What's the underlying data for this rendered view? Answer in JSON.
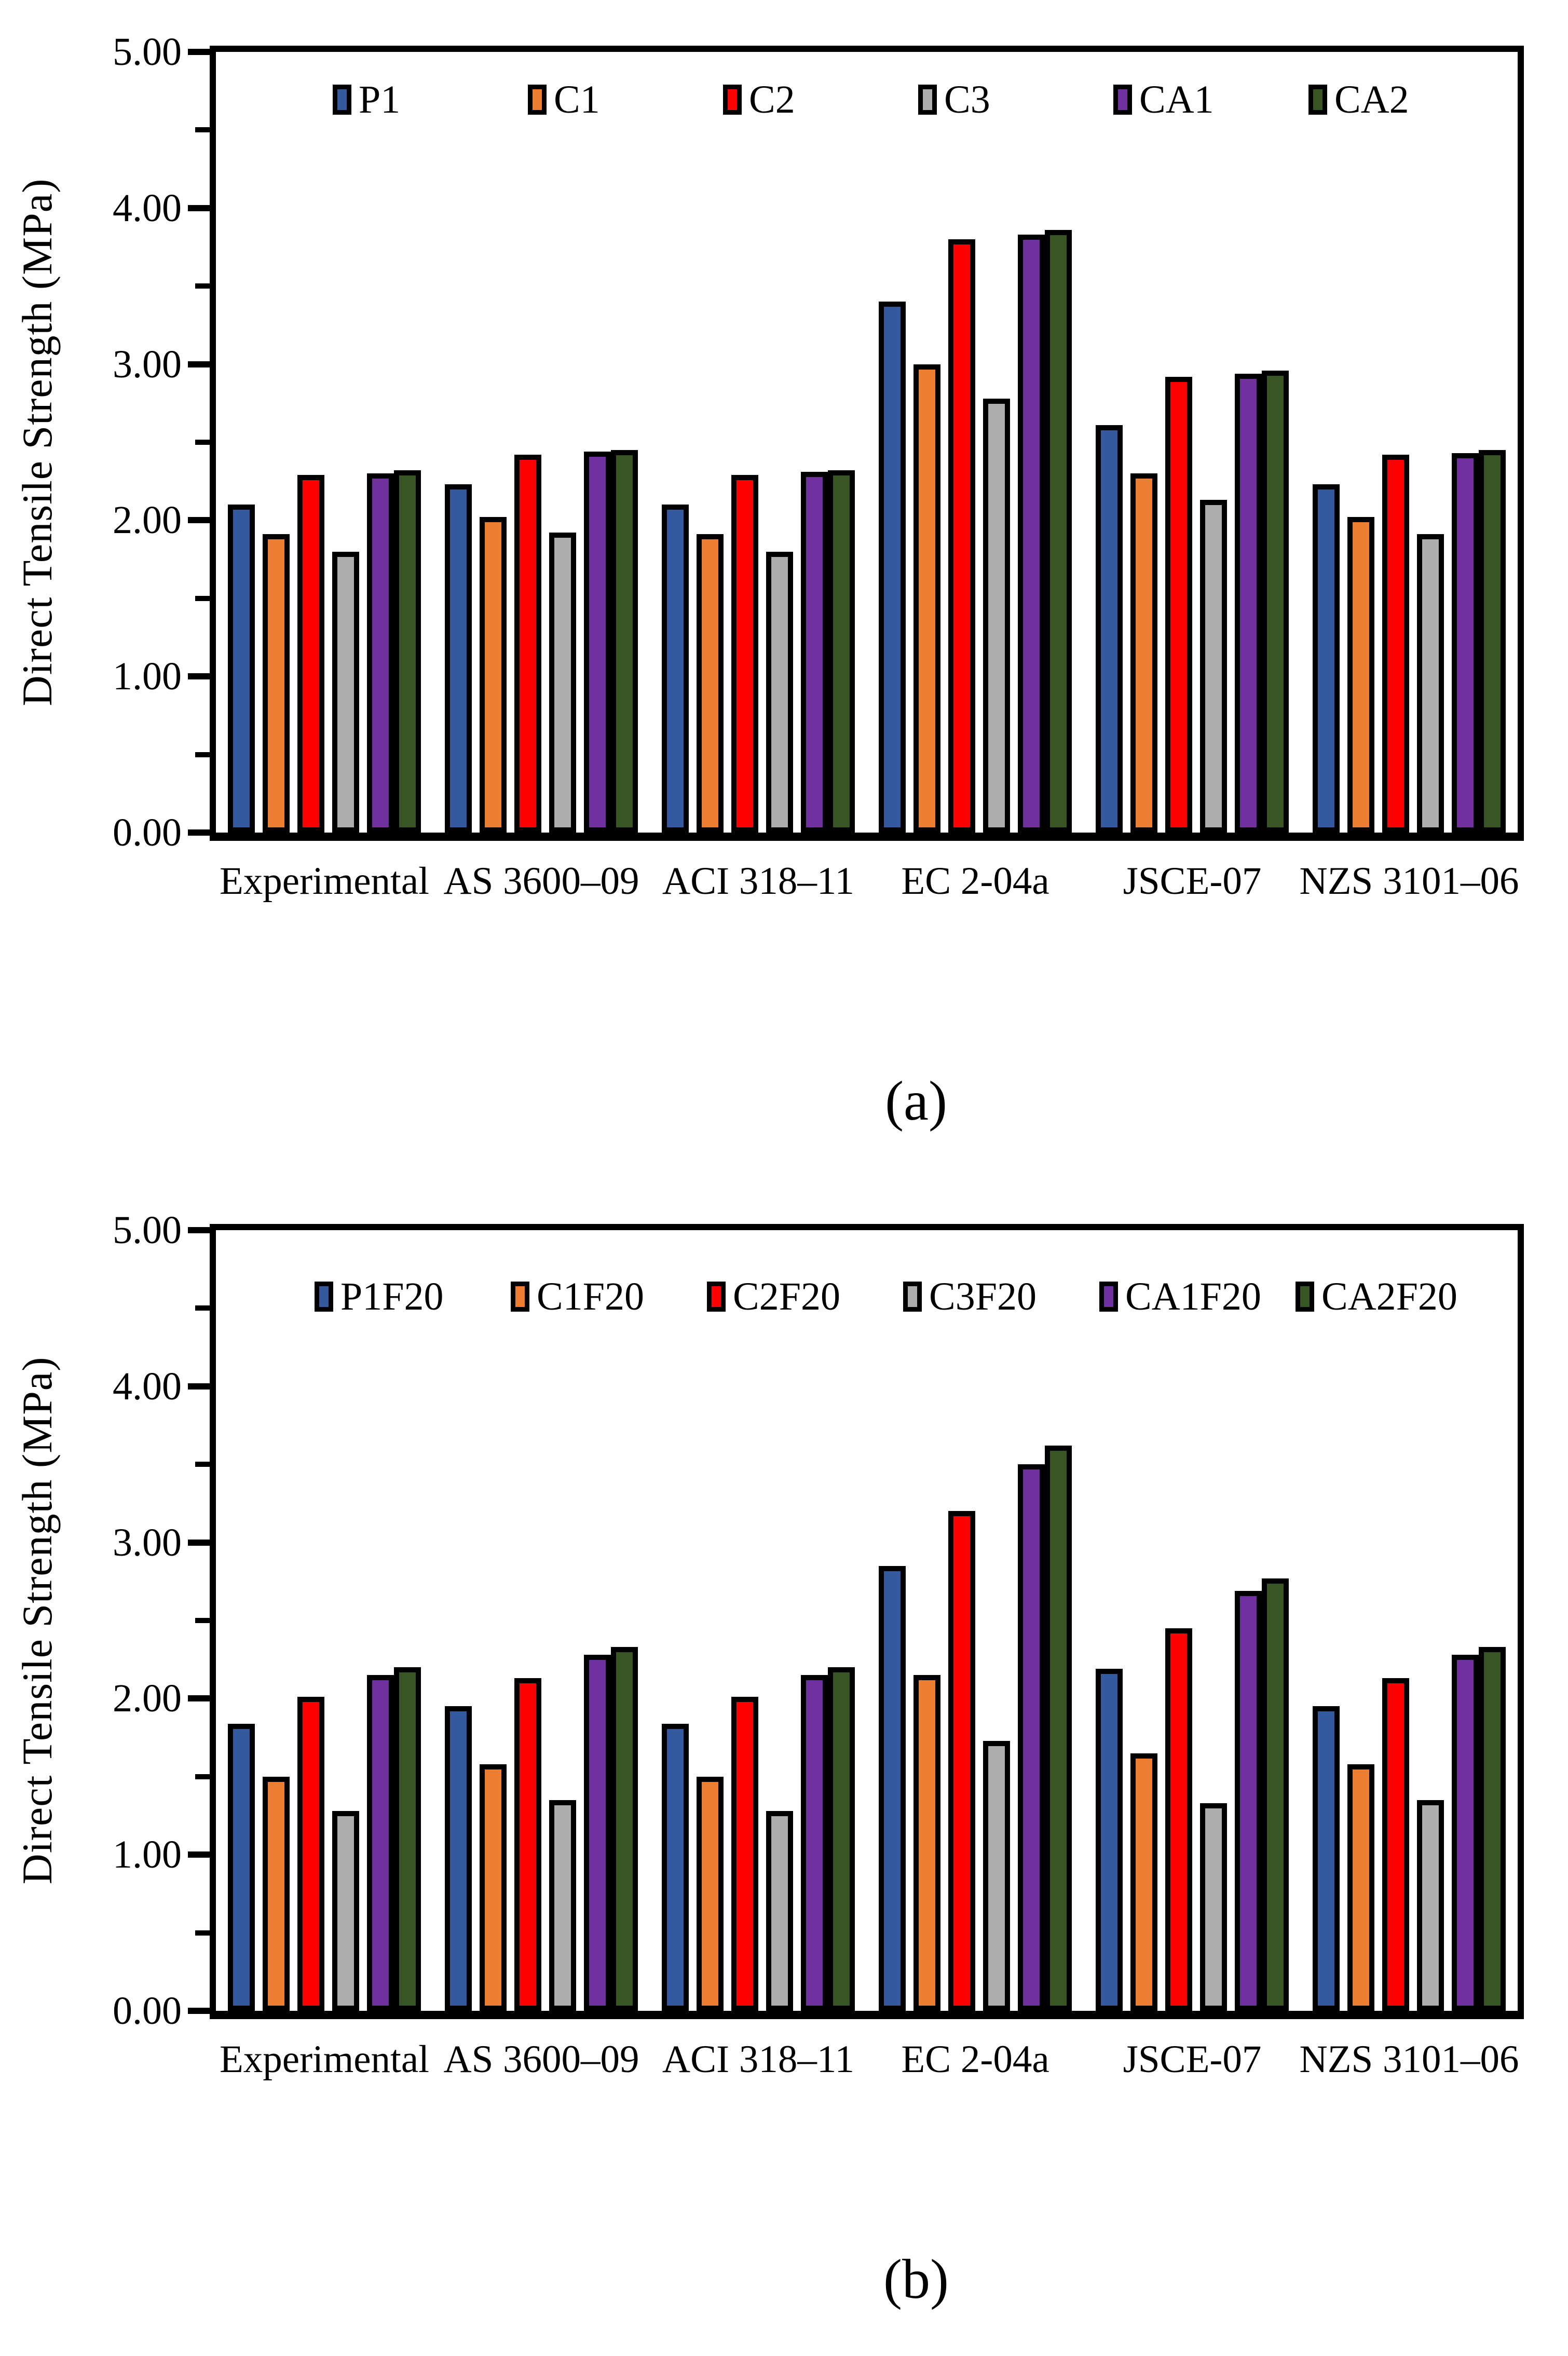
{
  "figure": {
    "y_axis_title": "Direct Tensile Strength (MPa)",
    "background_color": "#ffffff",
    "axis_color": "#000000"
  },
  "chart_data": [
    {
      "id": "a",
      "type": "bar",
      "caption": "(a)",
      "ylabel": "Direct Tensile Strength (MPa)",
      "xlabel": "",
      "ylim": [
        0,
        5
      ],
      "ytick_labels": [
        "0.00",
        "1.00",
        "2.00",
        "3.00",
        "4.00",
        "5.00"
      ],
      "ytick_minor_step": 0.5,
      "grid": false,
      "legend_position": "top-inside",
      "categories": [
        "Experimental",
        "AS 3600–09",
        "ACI 318–11",
        "EC 2-04a",
        "JSCE-07",
        "NZS 3101–06"
      ],
      "series": [
        {
          "name": "P1",
          "color": "#33599E",
          "values": [
            2.1,
            2.23,
            2.1,
            3.4,
            2.61,
            2.23
          ]
        },
        {
          "name": "C1",
          "color": "#ED7D31",
          "values": [
            1.91,
            2.02,
            1.91,
            3.0,
            2.3,
            2.02
          ]
        },
        {
          "name": "C2",
          "color": "#FE0000",
          "values": [
            2.29,
            2.42,
            2.29,
            3.8,
            2.92,
            2.42
          ]
        },
        {
          "name": "C3",
          "color": "#ADADAD",
          "values": [
            1.8,
            1.92,
            1.8,
            2.78,
            2.13,
            1.91
          ]
        },
        {
          "name": "CA1",
          "color": "#7030A0",
          "values": [
            2.3,
            2.44,
            2.31,
            3.83,
            2.94,
            2.43
          ]
        },
        {
          "name": "CA2",
          "color": "#375623",
          "values": [
            2.32,
            2.45,
            2.32,
            3.86,
            2.96,
            2.45
          ]
        }
      ]
    },
    {
      "id": "b",
      "type": "bar",
      "caption": "(b)",
      "ylabel": "Direct Tensile Strength (MPa)",
      "xlabel": "",
      "ylim": [
        0,
        5
      ],
      "ytick_labels": [
        "0.00",
        "1.00",
        "2.00",
        "3.00",
        "4.00",
        "5.00"
      ],
      "ytick_minor_step": 0.5,
      "grid": false,
      "legend_position": "top-inside",
      "categories": [
        "Experimental",
        "AS 3600–09",
        "ACI 318–11",
        "EC 2-04a",
        "JSCE-07",
        "NZS 3101–06"
      ],
      "series": [
        {
          "name": "P1F20",
          "color": "#33599E",
          "values": [
            1.84,
            1.95,
            1.84,
            2.85,
            2.19,
            1.95
          ]
        },
        {
          "name": "C1F20",
          "color": "#ED7D31",
          "values": [
            1.5,
            1.58,
            1.5,
            2.15,
            1.65,
            1.58
          ]
        },
        {
          "name": "C2F20",
          "color": "#FE0000",
          "values": [
            2.01,
            2.13,
            2.01,
            3.2,
            2.45,
            2.13
          ]
        },
        {
          "name": "C3F20",
          "color": "#ADADAD",
          "values": [
            1.28,
            1.35,
            1.28,
            1.73,
            1.33,
            1.35
          ]
        },
        {
          "name": "CA1F20",
          "color": "#7030A0",
          "values": [
            2.15,
            2.28,
            2.15,
            3.5,
            2.69,
            2.28
          ]
        },
        {
          "name": "CA2F20",
          "color": "#375623",
          "values": [
            2.2,
            2.33,
            2.2,
            3.62,
            2.77,
            2.33
          ]
        }
      ]
    }
  ]
}
